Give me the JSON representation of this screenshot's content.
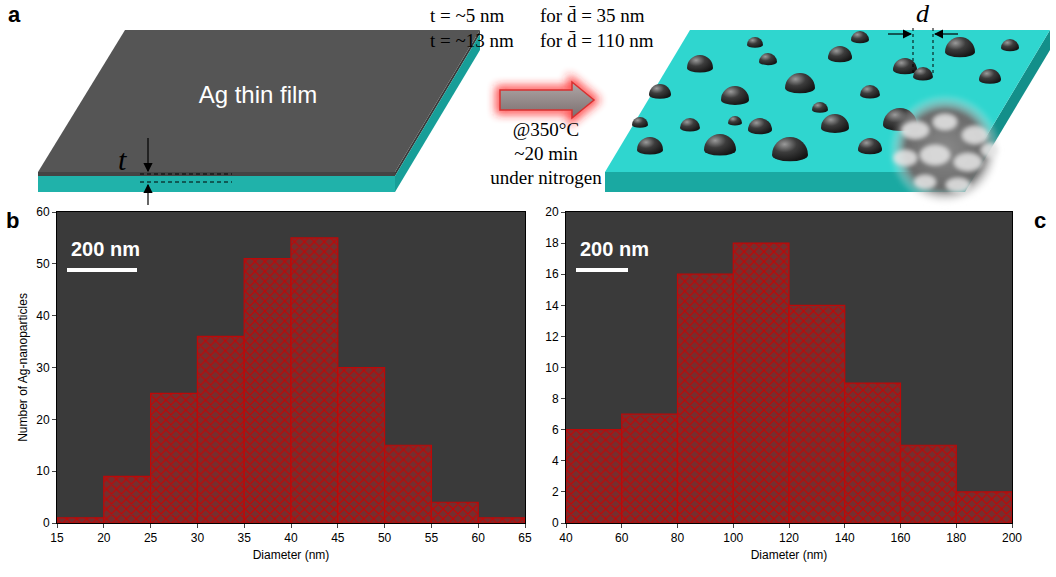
{
  "diagram": {
    "label": "a",
    "film_label": "Ag thin film",
    "thickness_label": "t",
    "conditions": [
      {
        "t": "t = ~5 nm",
        "d": "for d̄ = 35 nm"
      },
      {
        "t": "t = ~13 nm",
        "d": "for d̄ = 110 nm"
      }
    ],
    "process": [
      "@350°C",
      "~20 min",
      "under nitrogen"
    ],
    "diameter_label": "d"
  },
  "chart_data": [
    {
      "type": "histogram",
      "panel_label": "b",
      "x_label": "Diameter (nm)",
      "y_label": "Number of Ag-nanoparticles",
      "bins": [
        15,
        20,
        25,
        30,
        35,
        40,
        45,
        50,
        55,
        60,
        65
      ],
      "counts": [
        1,
        9,
        25,
        36,
        51,
        55,
        30,
        15,
        4,
        1
      ],
      "color": "#d40000",
      "grid": false,
      "xlim": [
        15,
        65
      ],
      "xticks": [
        15,
        20,
        25,
        30,
        35,
        40,
        45,
        50,
        55,
        60,
        65
      ],
      "ylim": [
        0,
        60
      ],
      "yticks": [
        0,
        10,
        20,
        30,
        40,
        50,
        60
      ],
      "annotations": [
        "200 nm"
      ]
    },
    {
      "type": "histogram",
      "panel_label": "c",
      "x_label": "Diameter (nm)",
      "bins": [
        40,
        60,
        80,
        100,
        120,
        140,
        160,
        180,
        200
      ],
      "counts": [
        6,
        7,
        16,
        18,
        14,
        9,
        5,
        2
      ],
      "color": "#d40000",
      "grid": false,
      "xlim": [
        40,
        200
      ],
      "xticks": [
        40,
        60,
        80,
        100,
        120,
        140,
        160,
        180,
        200
      ],
      "ylim": [
        0,
        20
      ],
      "yticks": [
        0,
        2,
        4,
        6,
        8,
        10,
        12,
        14,
        16,
        18,
        20
      ],
      "annotations": [
        "200 nm"
      ]
    }
  ]
}
